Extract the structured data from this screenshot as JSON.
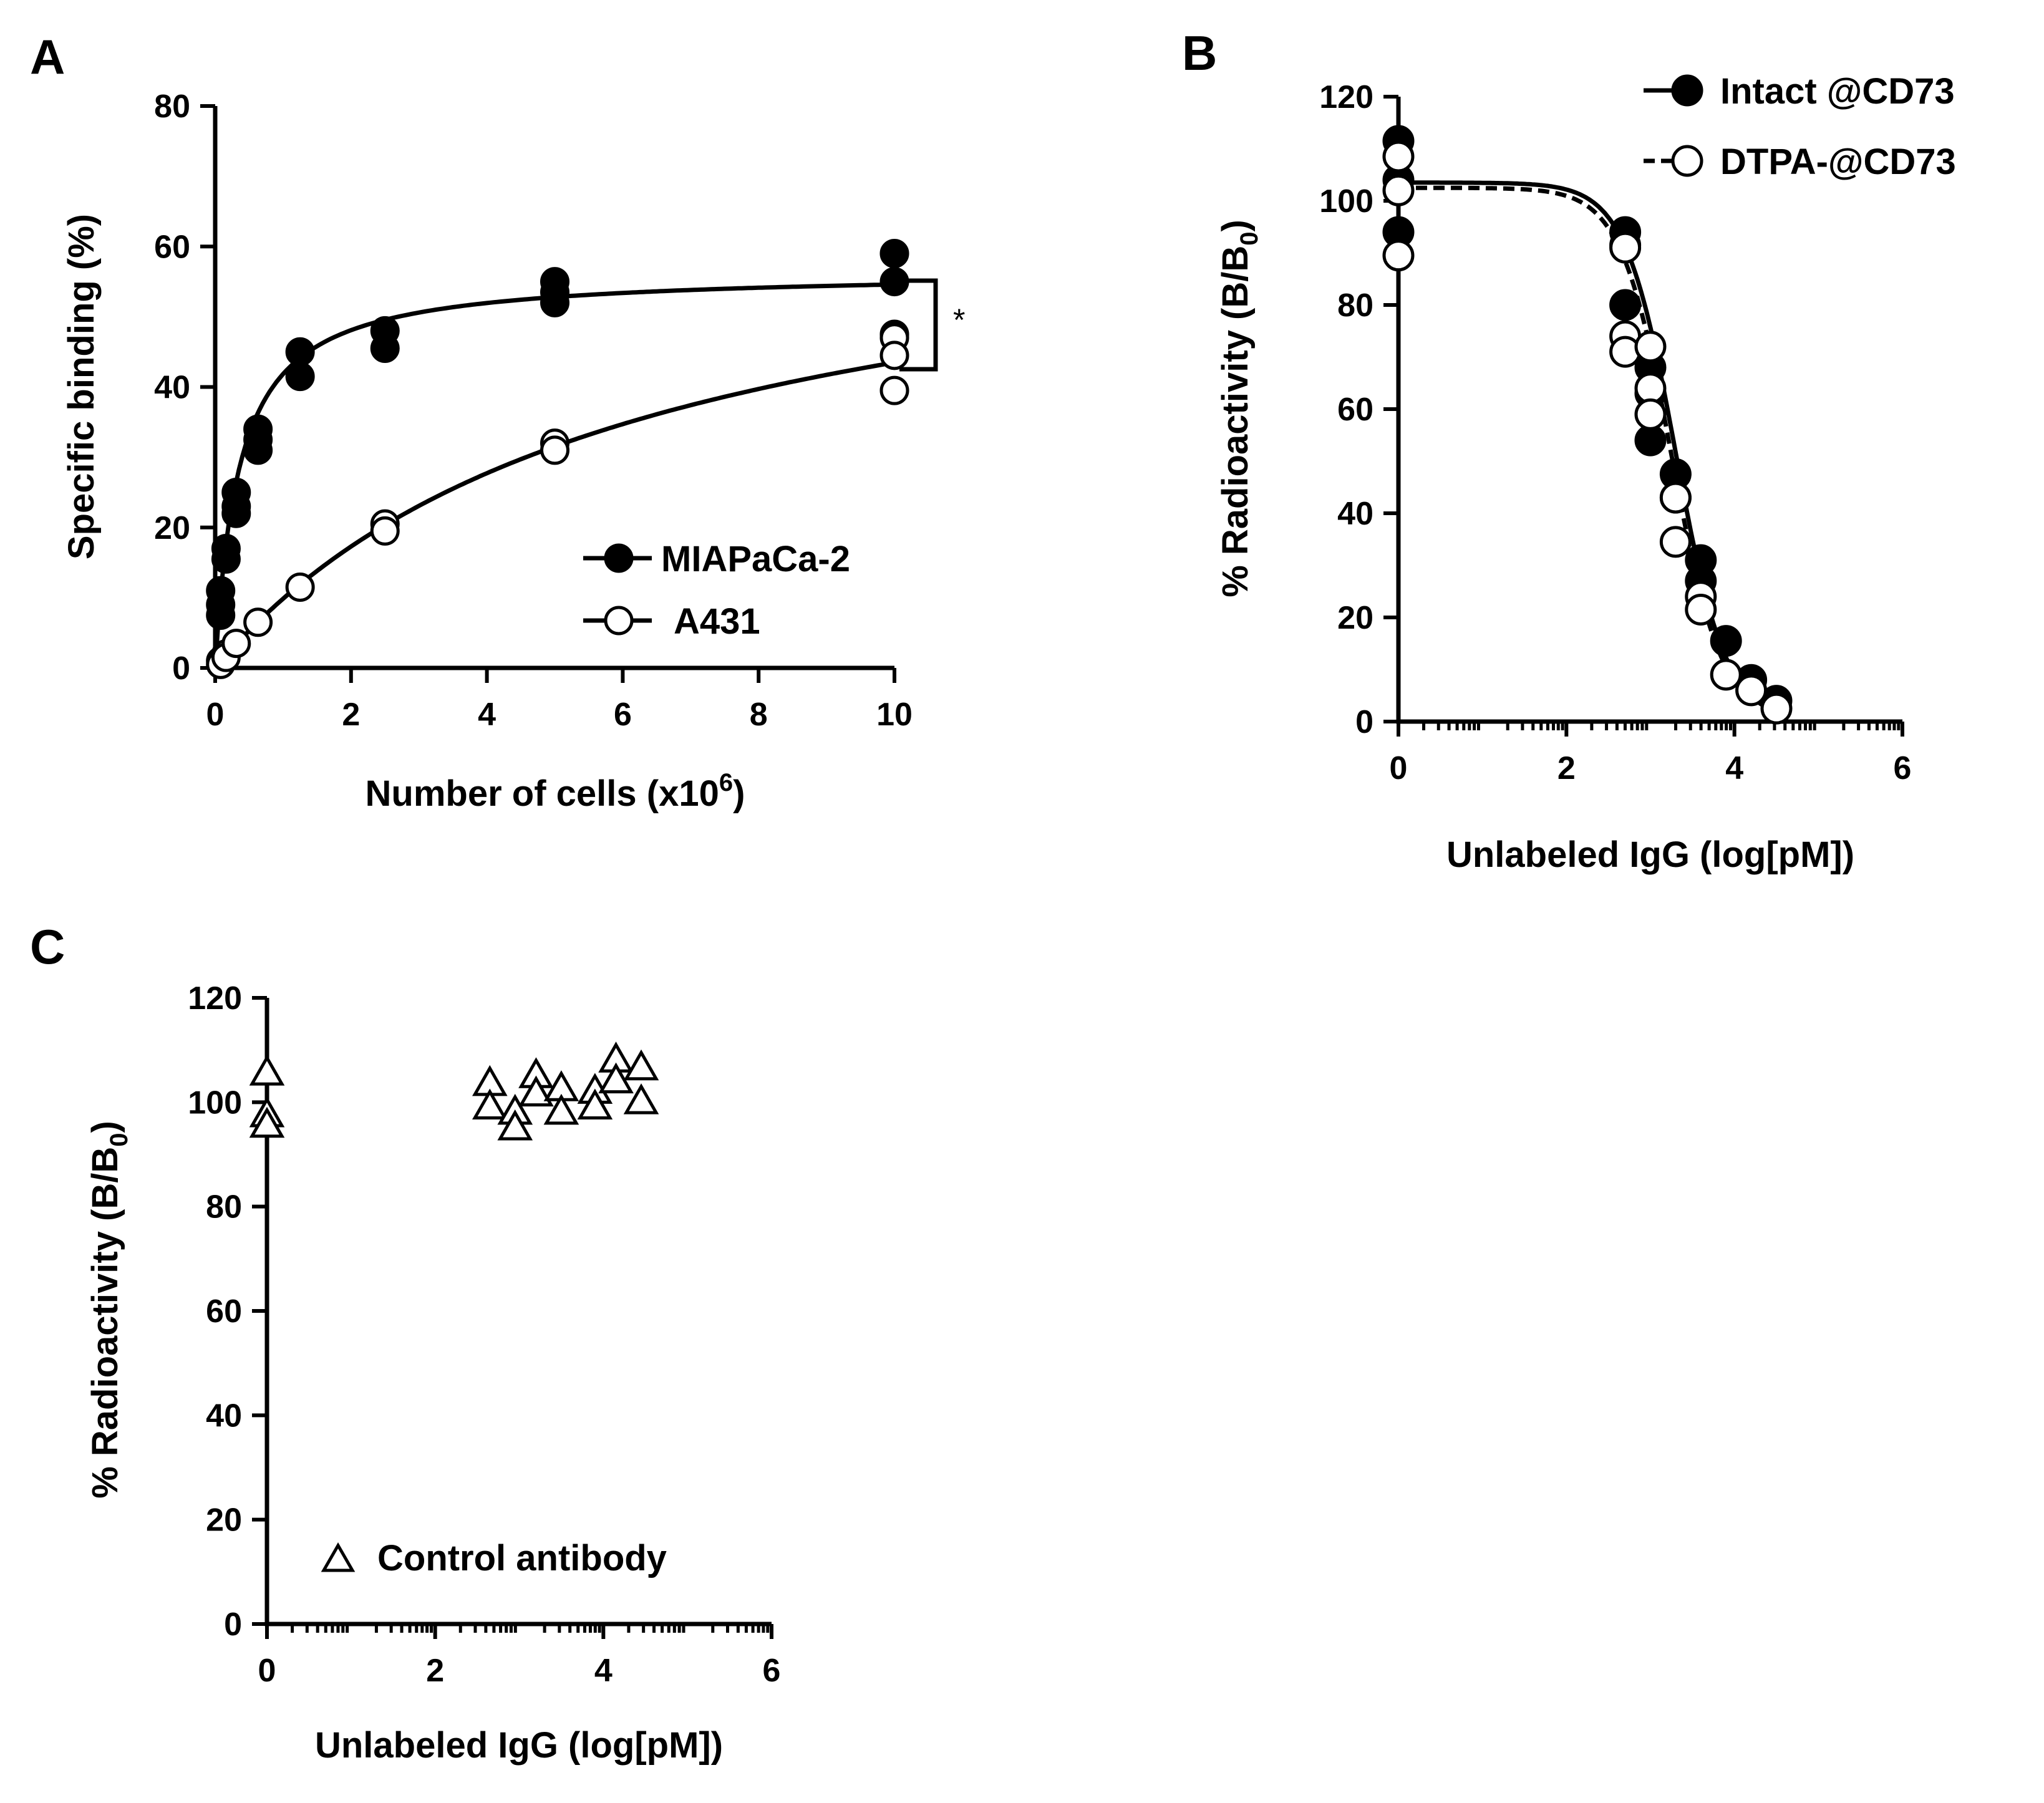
{
  "chart_data": [
    {
      "panel": "A",
      "type": "scatter",
      "title": "",
      "xlabel": "Number of cells (x10",
      "xlabel_sup": "6",
      "xlabel_end": ")",
      "ylabel": "Specific binding (%)",
      "xlim": [
        0,
        10
      ],
      "ylim": [
        0,
        80
      ],
      "xticks": [
        0,
        2,
        4,
        6,
        8,
        10
      ],
      "yticks": [
        0,
        20,
        40,
        60,
        80
      ],
      "significance": "*",
      "series": [
        {
          "name": "MIAPaCa-2",
          "marker": "filled-circle",
          "fit": {
            "type": "one-site-hyperbola",
            "bmax": 56.5,
            "kd": 0.35
          },
          "x": [
            0.08,
            0.08,
            0.08,
            0.16,
            0.16,
            0.31,
            0.31,
            0.31,
            0.63,
            0.63,
            0.63,
            1.25,
            1.25,
            2.5,
            2.5,
            5,
            5,
            5,
            10,
            10,
            10
          ],
          "y": [
            11,
            9,
            7.5,
            17,
            15.5,
            25,
            23,
            22,
            34,
            32.5,
            31,
            45,
            41.5,
            48,
            45.5,
            55,
            53.5,
            52,
            59,
            55,
            47.5
          ]
        },
        {
          "name": "A431",
          "marker": "open-circle",
          "fit": {
            "type": "one-site-hyperbola",
            "bmax": 70,
            "kd": 6.1
          },
          "x": [
            0.08,
            0.08,
            0.16,
            0.16,
            0.31,
            0.63,
            1.25,
            2.5,
            2.5,
            5,
            5,
            10,
            10,
            10
          ],
          "y": [
            1,
            0.5,
            2,
            1.5,
            3.5,
            6.5,
            11.5,
            20.5,
            19.5,
            32,
            31,
            47,
            44.5,
            39.5
          ]
        }
      ]
    },
    {
      "panel": "B",
      "type": "scatter",
      "title": "",
      "xlabel": "Unlabeled IgG (log[pM])",
      "ylabel": "% Radioactivity (B/B",
      "ylabel_sub": "0",
      "ylabel_end": ")",
      "xlim": [
        0,
        6
      ],
      "ylim": [
        0,
        120
      ],
      "xticks": [
        0,
        2,
        4,
        6
      ],
      "yticks": [
        0,
        20,
        40,
        60,
        80,
        100,
        120
      ],
      "series": [
        {
          "name": "Intact @CD73",
          "marker": "filled-circle",
          "line": "solid",
          "fit": {
            "type": "sigmoid",
            "top": 103.5,
            "bottom": 0,
            "logec50": 3.3,
            "slope": 1.45
          },
          "x": [
            0,
            0,
            0,
            2.7,
            2.7,
            2.7,
            3.0,
            3.0,
            3.0,
            3.3,
            3.3,
            3.6,
            3.6,
            3.9,
            4.2,
            4.5
          ],
          "y": [
            111.5,
            104,
            94,
            94,
            91.5,
            80,
            68,
            63,
            54,
            47.5,
            43,
            31,
            27,
            15.5,
            8,
            4
          ]
        },
        {
          "name": "DTPA-@CD73",
          "marker": "open-circle",
          "line": "dashed",
          "fit": {
            "type": "sigmoid",
            "top": 102.5,
            "bottom": 0,
            "logec50": 3.25,
            "slope": 1.45
          },
          "x": [
            0,
            0,
            0,
            2.7,
            2.7,
            2.7,
            3.0,
            3.0,
            3.0,
            3.3,
            3.3,
            3.6,
            3.6,
            3.9,
            4.2,
            4.5
          ],
          "y": [
            108.5,
            102,
            89.5,
            91,
            74,
            71,
            72,
            64,
            59,
            43,
            34.5,
            24,
            21.5,
            9,
            6,
            2.5
          ]
        }
      ]
    },
    {
      "panel": "C",
      "type": "scatter",
      "title": "",
      "xlabel": "Unlabeled IgG (log[pM])",
      "ylabel": "% Radioactivity (B/B",
      "ylabel_sub": "0",
      "ylabel_end": ")",
      "xlim": [
        0,
        6
      ],
      "ylim": [
        0,
        120
      ],
      "xticks": [
        0,
        2,
        4,
        6
      ],
      "yticks": [
        0,
        20,
        40,
        60,
        80,
        100,
        120
      ],
      "series": [
        {
          "name": "Control antibody",
          "marker": "open-triangle",
          "x": [
            0,
            0,
            0,
            2.65,
            2.65,
            2.95,
            2.95,
            3.2,
            3.2,
            3.5,
            3.5,
            3.9,
            3.9,
            4.15,
            4.15,
            4.45,
            4.45
          ],
          "y": [
            105.5,
            97.5,
            95.5,
            103.5,
            99,
            98,
            95,
            105,
            101.5,
            102.5,
            98,
            102,
            99,
            108,
            104,
            106.5,
            100
          ]
        }
      ]
    }
  ]
}
